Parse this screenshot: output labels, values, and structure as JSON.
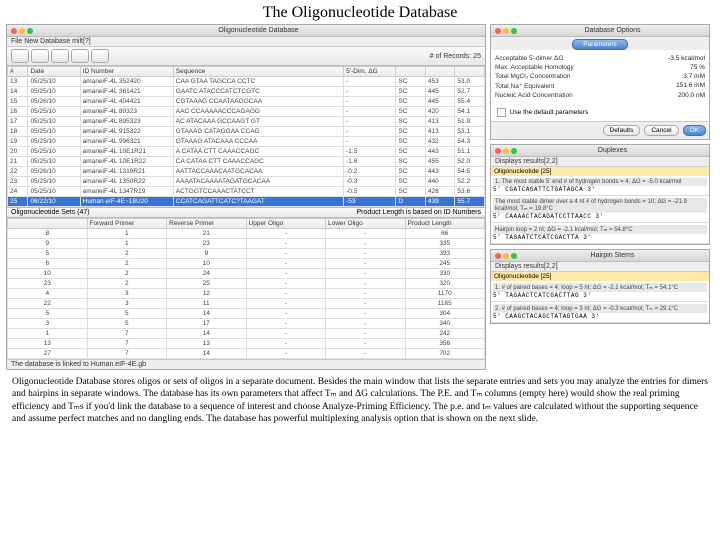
{
  "page_title": "The Oligonucleotide Database",
  "main_window": {
    "title": "Oligonucleotide Database",
    "menubar": "File   New Database   milt[?]",
    "records_label": "# of Records: 25",
    "cols": [
      "#",
      "Date",
      "ID Number",
      "Sequence",
      "5'-Dim. ΔG",
      "",
      "",
      ""
    ],
    "col_widths": [
      "18px",
      "46px",
      "82px",
      "150px",
      "46px",
      "26px",
      "26px",
      "26px"
    ],
    "rows": [
      [
        "13",
        "05/25/10",
        "amaneiF-4L 352420",
        "CAA GTAA TAGCCA CCTC",
        "-",
        "SC",
        "-",
        "453",
        "-",
        "53.0"
      ],
      [
        "14",
        "05/25/10",
        "amaneiF-4L 361421",
        "GAATC ATACCCATCTCGTC",
        "-",
        "SC",
        "-",
        "445",
        "-",
        "52.7"
      ],
      [
        "15",
        "05/26/10",
        "amaneiF-4L 404421",
        "CGTAAAG CCAATAAGGCAA",
        "-",
        "SC",
        "-",
        "445",
        "-",
        "55.4"
      ],
      [
        "16",
        "05/25/10",
        "amaneiF-4L 80323",
        "AAC CCAAAAACCCAGAGG",
        "-",
        "SC",
        "-",
        "420",
        "-",
        "54.1"
      ],
      [
        "17",
        "05/25/10",
        "amaneiF-4L 895323",
        "AC ATACAAA GCCAAGT GT",
        "-",
        "SC",
        "-",
        "413",
        "-",
        "51.9"
      ],
      [
        "18",
        "05/25/10",
        "amaneiF-4L 915322",
        "GTAAAG CATAGGAA CCAG",
        "-",
        "SC",
        "-",
        "413",
        "-",
        "53.1"
      ],
      [
        "19",
        "05/25/10",
        "amaneiF-4L 996321",
        "GTAAAG ATACAAA CCCAA",
        "-",
        "SC",
        "-",
        "432",
        "-",
        "54.3"
      ],
      [
        "20",
        "05/25/10",
        "amaneiF-4L 10E1R21",
        "A CATAA CTT CAAACCAGC",
        "-1.5",
        "SC",
        "-",
        "443",
        "-",
        "51.1"
      ],
      [
        "21",
        "05/25/10",
        "amaneiF-4L 10E1R22",
        "CA CATAA CTT CAAACCAGC",
        "-1.6",
        "SC",
        "-",
        "455",
        "-",
        "52.0"
      ],
      [
        "22",
        "05/26/10",
        "amaneiF-4L 1319R21",
        "AATTACCAAACAATGCACAA",
        "-0.2",
        "SC",
        "-",
        "443",
        "-",
        "54.5"
      ],
      [
        "23",
        "05/25/10",
        "amaneiF-4L 1350R22",
        "AAAATACAAAATAGATGCACAA",
        "-0.3",
        "SC",
        "-",
        "440",
        "-",
        "52.2"
      ],
      [
        "24",
        "05/25/10",
        "amaneiF-4L 1347R19",
        "ACTGGTCCAAACTATCCT",
        "-0.5",
        "SC",
        "-",
        "428",
        "-",
        "53.6"
      ],
      [
        "25",
        "06/22/10",
        "Human eIF-4E~18U20",
        "CCATCAGATTCATC?TAAGAT",
        "-53",
        "D",
        "-",
        "439",
        "-",
        "55.7"
      ]
    ],
    "sel_row": 12,
    "sets_header": {
      "label": "Oligonucleotide Sets  (47)",
      "note": "Product Length is based on ID Numbers"
    },
    "sets_cols": [
      "",
      "Forward Primer",
      "Reverse Primer",
      "Upper Oligo",
      "Lower Oligo",
      "Product Length"
    ],
    "sets_rows": [
      [
        "8",
        "1",
        "21",
        "-",
        "-",
        "66"
      ],
      [
        "9",
        "1",
        "23",
        "-",
        "-",
        "335"
      ],
      [
        "5",
        "2",
        "9",
        "-",
        "-",
        "393"
      ],
      [
        "6",
        "2",
        "10",
        "-",
        "-",
        "245"
      ],
      [
        "10",
        "2",
        "24",
        "-",
        "-",
        "330"
      ],
      [
        "23",
        "2",
        "25",
        "-",
        "-",
        "320"
      ],
      [
        "4",
        "3",
        "12",
        "-",
        "-",
        "1170"
      ],
      [
        "22",
        "3",
        "11",
        "-",
        "-",
        "1165"
      ],
      [
        "5",
        "5",
        "14",
        "-",
        "-",
        "304"
      ],
      [
        "3",
        "5",
        "17",
        "-",
        "-",
        "340"
      ],
      [
        "1",
        "7",
        "14",
        "-",
        "-",
        "242"
      ],
      [
        "13",
        "7",
        "13",
        "-",
        "-",
        "356"
      ],
      [
        "27",
        "7",
        "14",
        "-",
        "-",
        "702"
      ]
    ],
    "footer": "The database is linked to Human.eIF-4E.gb"
  },
  "opts_win": {
    "title": "Database Options",
    "tab": "Parameters",
    "rows": [
      [
        "Acceptable 5'-dimer ΔG",
        "-3.5",
        "kcal/mol"
      ],
      [
        "Max. Acceptable Homology",
        "75",
        "%"
      ],
      [
        "Total MgCl₂ Concentration",
        "3.7",
        "mM"
      ],
      [
        "Total Na⁺ Equivalent",
        "151.6",
        "mM"
      ],
      [
        "Nucleic Acid Concentration",
        "200.0",
        "nM"
      ]
    ],
    "checkbox": "Use the default parameters",
    "btns": [
      "Defaults",
      "Cancel",
      "OK"
    ]
  },
  "duplexes_win": {
    "title": "Duplexes",
    "sub": "Displays results[2,2]",
    "oligo": "Oligonucleotide [25]",
    "sections": [
      {
        "label": "1. The most stable 5' end # of hydrogen bonds = 4; ΔG = -5.0 kcal/mol",
        "seq": "5' CGATCAGATTCTGATAGCA  3'"
      },
      {
        "label": "The most stable dimer over a 4 nt # of hydrogen bonds = 10; ΔG = -21.9 kcal/mol; Tₘ = 19.8°C",
        "seq": "5' CAAAACTACAGATCCTTAACC  3'"
      },
      {
        "label": "Hairpin loop = 2 nt; ΔG = -2.1 kcal/mol; Tₘ = 54.8°C",
        "seq": "5' TAGAATCTCATCGACTTA  3'"
      }
    ]
  },
  "hairpin_win": {
    "title": "Hairpin Stems",
    "sub": "Displays results[2,2]",
    "oligo": "Oligonucleotide [25]",
    "sections": [
      {
        "label": "1. # of paired bases = 4; loop = 5 nt; ΔG = -2.1 kcal/mol; Tₘ = 54.1°C",
        "seq": "5' TAGAACTCATCGACTTAG  3'"
      },
      {
        "label": "2. # of paired bases = 4; loop = 3 nt; ΔG = -0.3 kcal/mol; Tₘ = 29.1°C",
        "seq": "5' CAAGCTACAGCTATAGTGAA  3'"
      }
    ]
  },
  "caption": "Oligonucleotide Database stores oligos or sets of oligos in a separate document. Besides the main window that lists the separate entries and sets you may analyze the entries for dimers and hairpins in separate windows. The database has its own parameters that affect Tₘ and ΔG calculations.  The  P.E. and Tₘ columns (empty here) would show the real priming efficiency and  Tₘs if  you'd link the database to a sequence of interest and choose Analyze-Priming Efficiency. The p.e. and tₘ values are calculated without the supporting sequence and assume perfect matches and no dangling ends. The database has powerful multiplexing analysis option that is shown on the next slide."
}
